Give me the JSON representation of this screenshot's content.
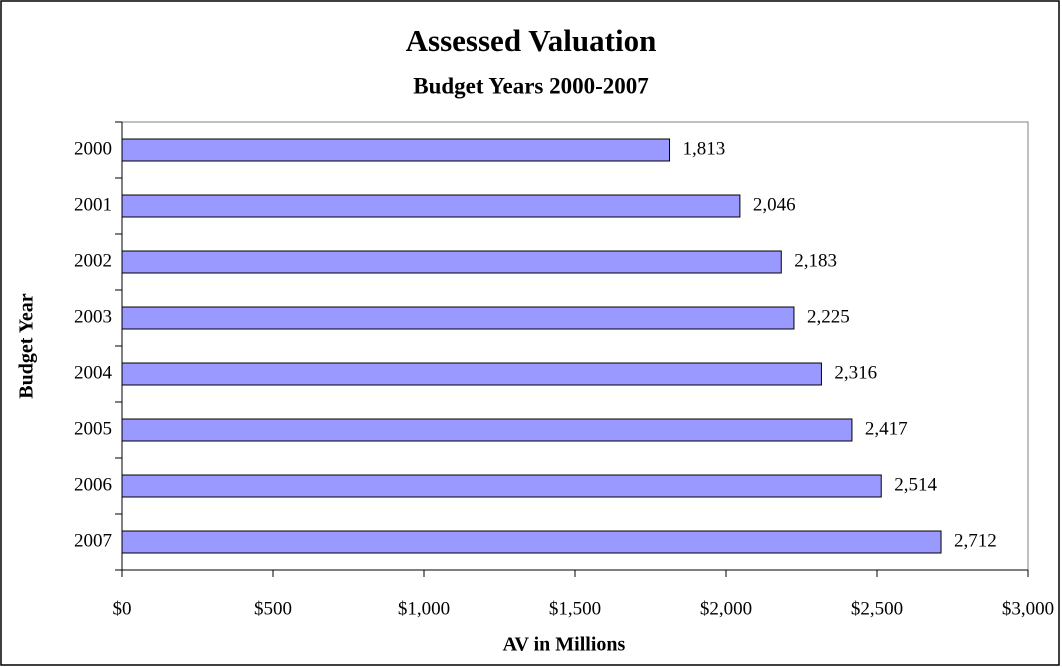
{
  "chart_data": {
    "type": "bar",
    "orientation": "horizontal",
    "title": "Assessed Valuation",
    "subtitle": "Budget Years 2000-2007",
    "x_label": "AV in Millions",
    "y_label": "Budget Year",
    "categories": [
      "2000",
      "2001",
      "2002",
      "2003",
      "2004",
      "2005",
      "2006",
      "2007"
    ],
    "values": [
      1813,
      2046,
      2183,
      2225,
      2316,
      2417,
      2514,
      2712
    ],
    "value_labels": [
      "1,813",
      "2,046",
      "2,183",
      "2,225",
      "2,316",
      "2,417",
      "2,514",
      "2,712"
    ],
    "color": "#9999ff",
    "xlim": [
      0,
      3000
    ],
    "xticks": [
      {
        "value": 0,
        "label": "$0"
      },
      {
        "value": 500,
        "label": "$500"
      },
      {
        "value": 1000,
        "label": "$1,000"
      },
      {
        "value": 1500,
        "label": "$1,500"
      },
      {
        "value": 2000,
        "label": "$2,000"
      },
      {
        "value": 2500,
        "label": "$2,500"
      },
      {
        "value": 3000,
        "label": "$3,000"
      }
    ],
    "grid": false
  }
}
